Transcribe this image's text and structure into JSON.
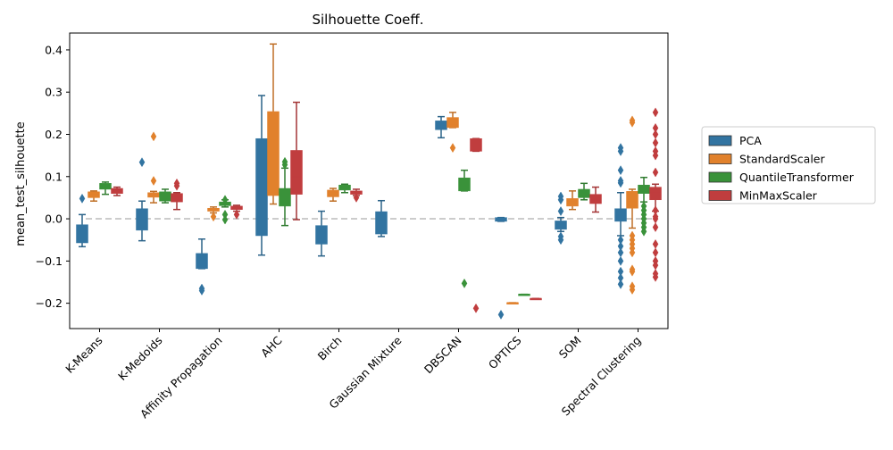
{
  "chart_data": {
    "type": "box",
    "title": "Silhouette Coeff.",
    "xlabel": "",
    "ylabel": "mean_test_silhouette",
    "ylim": [
      -0.26,
      0.44
    ],
    "yticks": [
      -0.2,
      -0.1,
      0.0,
      0.1,
      0.2,
      0.3,
      0.4
    ],
    "ytick_labels": [
      "−0.2",
      "−0.1",
      "0.0",
      "0.1",
      "0.2",
      "0.3",
      "0.4"
    ],
    "reference_line": {
      "y": 0.0,
      "style": "dashed",
      "color": "#bbbbbb"
    },
    "grid": false,
    "legend_position": "right-outside",
    "categories": [
      "K-Means",
      "K-Medoids",
      "Affinity Propagation",
      "AHC",
      "Birch",
      "Gaussian Mixture",
      "DBSCAN",
      "OPTICS",
      "SOM",
      "Spectral Clustering"
    ],
    "series": [
      {
        "name": "PCA",
        "color": "#3274a1",
        "boxes": [
          {
            "whislo": -0.066,
            "q1": -0.057,
            "med": -0.03,
            "q3": -0.014,
            "whishi": 0.01,
            "fliers": [
              0.048
            ]
          },
          {
            "whislo": -0.052,
            "q1": -0.027,
            "med": 0.0,
            "q3": 0.024,
            "whishi": 0.042,
            "fliers": [
              0.134
            ]
          },
          {
            "whislo": -0.118,
            "q1": -0.118,
            "med": -0.1,
            "q3": -0.082,
            "whishi": -0.048,
            "fliers": [
              -0.165,
              -0.17
            ]
          },
          {
            "whislo": -0.086,
            "q1": -0.04,
            "med": 0.1,
            "q3": 0.19,
            "whishi": 0.292,
            "fliers": []
          },
          {
            "whislo": -0.088,
            "q1": -0.06,
            "med": -0.03,
            "q3": -0.016,
            "whishi": 0.018,
            "fliers": []
          },
          {
            "whislo": -0.042,
            "q1": -0.036,
            "med": -0.005,
            "q3": 0.017,
            "whishi": 0.043,
            "fliers": []
          },
          {
            "whislo": 0.192,
            "q1": 0.211,
            "med": 0.222,
            "q3": 0.232,
            "whishi": 0.242,
            "fliers": []
          },
          {
            "whislo": -0.006,
            "q1": -0.006,
            "med": -0.003,
            "q3": 0.003,
            "whishi": 0.003,
            "fliers": [
              -0.227
            ]
          },
          {
            "whislo": -0.03,
            "q1": -0.025,
            "med": -0.015,
            "q3": -0.005,
            "whishi": 0.003,
            "fliers": [
              -0.05,
              -0.042,
              0.018,
              0.045,
              0.053
            ]
          },
          {
            "whislo": -0.04,
            "q1": -0.006,
            "med": 0.01,
            "q3": 0.024,
            "whishi": 0.062,
            "fliers": [
              -0.155,
              -0.14,
              -0.125,
              -0.1,
              -0.08,
              -0.065,
              -0.05,
              0.085,
              0.09,
              0.115,
              0.16,
              0.168
            ]
          }
        ]
      },
      {
        "name": "StandardScaler",
        "color": "#e1812c",
        "boxes": [
          {
            "whislo": 0.042,
            "q1": 0.05,
            "med": 0.056,
            "q3": 0.064,
            "whishi": 0.066,
            "fliers": []
          },
          {
            "whislo": 0.038,
            "q1": 0.051,
            "med": 0.056,
            "q3": 0.062,
            "whishi": 0.065,
            "fliers": [
              0.09,
              0.195
            ]
          },
          {
            "whislo": 0.014,
            "q1": 0.018,
            "med": 0.021,
            "q3": 0.025,
            "whishi": 0.028,
            "fliers": [
              0.005
            ]
          },
          {
            "whislo": 0.035,
            "q1": 0.055,
            "med": 0.06,
            "q3": 0.254,
            "whishi": 0.414,
            "fliers": []
          },
          {
            "whislo": 0.042,
            "q1": 0.052,
            "med": 0.06,
            "q3": 0.068,
            "whishi": 0.072,
            "fliers": []
          },
          {
            "whislo": 0.216,
            "q1": 0.216,
            "med": 0.225,
            "q3": 0.24,
            "whishi": 0.252,
            "fliers": [
              0.168
            ]
          },
          {
            "whislo": -0.199,
            "q1": -0.199,
            "med": -0.199,
            "q3": -0.199,
            "whishi": -0.199,
            "fliers": []
          },
          {
            "whislo": 0.022,
            "q1": 0.03,
            "med": 0.04,
            "q3": 0.048,
            "whishi": 0.066,
            "fliers": []
          },
          {
            "whislo": -0.022,
            "q1": 0.025,
            "med": 0.04,
            "q3": 0.065,
            "whishi": 0.07,
            "fliers": [
              -0.168,
              -0.16,
              -0.125,
              -0.12,
              -0.08,
              -0.07,
              -0.06,
              -0.05,
              -0.04,
              0.228,
              0.233
            ]
          }
        ]
      },
      {
        "name": "QuantileTransformer",
        "color": "#3a923a",
        "boxes": [
          {
            "whislo": 0.058,
            "q1": 0.07,
            "med": 0.076,
            "q3": 0.084,
            "whishi": 0.087,
            "fliers": []
          },
          {
            "whislo": 0.038,
            "q1": 0.042,
            "med": 0.05,
            "q3": 0.064,
            "whishi": 0.07,
            "fliers": []
          },
          {
            "whislo": 0.028,
            "q1": 0.031,
            "med": 0.035,
            "q3": 0.04,
            "whishi": 0.045,
            "fliers": [
              -0.002,
              0.01,
              0.045
            ]
          },
          {
            "whislo": -0.016,
            "q1": 0.03,
            "med": 0.05,
            "q3": 0.072,
            "whishi": 0.12,
            "fliers": [
              0.128,
              0.135
            ]
          },
          {
            "whislo": 0.062,
            "q1": 0.068,
            "med": 0.072,
            "q3": 0.08,
            "whishi": 0.082,
            "fliers": []
          },
          {
            "whislo": 0.066,
            "q1": 0.066,
            "med": 0.09,
            "q3": 0.097,
            "whishi": 0.115,
            "fliers": [
              -0.153
            ]
          },
          {
            "whislo": -0.179,
            "q1": -0.179,
            "med": -0.179,
            "q3": -0.179,
            "whishi": -0.179,
            "fliers": []
          },
          {
            "whislo": 0.045,
            "q1": 0.05,
            "med": 0.06,
            "q3": 0.07,
            "whishi": 0.084,
            "fliers": []
          },
          {
            "whislo": 0.04,
            "q1": 0.06,
            "med": 0.068,
            "q3": 0.08,
            "whishi": 0.098,
            "fliers": [
              -0.03,
              -0.02,
              -0.01,
              0.0,
              0.01,
              0.02,
              0.03
            ]
          }
        ]
      },
      {
        "name": "MinMaxScaler",
        "color": "#c03d3e",
        "boxes": [
          {
            "whislo": 0.055,
            "q1": 0.06,
            "med": 0.068,
            "q3": 0.072,
            "whishi": 0.075,
            "fliers": []
          },
          {
            "whislo": 0.022,
            "q1": 0.04,
            "med": 0.05,
            "q3": 0.06,
            "whishi": 0.062,
            "fliers": [
              0.078,
              0.084
            ]
          },
          {
            "whislo": 0.018,
            "q1": 0.022,
            "med": 0.025,
            "q3": 0.03,
            "whishi": 0.032,
            "fliers": [
              0.01
            ]
          },
          {
            "whislo": -0.002,
            "q1": 0.058,
            "med": 0.1,
            "q3": 0.162,
            "whishi": 0.276,
            "fliers": []
          },
          {
            "whislo": 0.055,
            "q1": 0.058,
            "med": 0.062,
            "q3": 0.066,
            "whishi": 0.07,
            "fliers": [
              0.05
            ]
          },
          {
            "whislo": 0.16,
            "q1": 0.16,
            "med": 0.17,
            "q3": 0.19,
            "whishi": 0.19,
            "fliers": [
              -0.212
            ]
          },
          {
            "whislo": -0.189,
            "q1": -0.189,
            "med": -0.189,
            "q3": -0.189,
            "whishi": -0.189,
            "fliers": []
          },
          {
            "whislo": 0.016,
            "q1": 0.036,
            "med": 0.045,
            "q3": 0.058,
            "whishi": 0.075,
            "fliers": []
          },
          {
            "whislo": 0.018,
            "q1": 0.045,
            "med": 0.06,
            "q3": 0.075,
            "whishi": 0.082,
            "fliers": [
              -0.138,
              -0.13,
              -0.11,
              -0.1,
              -0.08,
              -0.06,
              -0.02,
              0.0,
              0.005,
              0.02,
              0.11,
              0.15,
              0.16,
              0.18,
              0.2,
              0.215,
              0.252
            ]
          }
        ]
      }
    ],
    "box_slots": {
      "K-Means": [
        "PCA",
        "StandardScaler",
        "QuantileTransformer",
        "MinMaxScaler"
      ],
      "K-Medoids": [
        "PCA",
        "StandardScaler",
        "QuantileTransformer",
        "MinMaxScaler"
      ],
      "Affinity Propagation": [
        "PCA",
        "StandardScaler",
        "QuantileTransformer",
        "MinMaxScaler"
      ],
      "AHC": [
        "PCA",
        "StandardScaler",
        "QuantileTransformer",
        "MinMaxScaler"
      ],
      "Birch": [
        "PCA",
        "StandardScaler",
        "QuantileTransformer",
        "MinMaxScaler"
      ],
      "Gaussian Mixture": [
        "PCA"
      ],
      "DBSCAN": [
        "PCA",
        "StandardScaler",
        "QuantileTransformer",
        "MinMaxScaler"
      ],
      "OPTICS": [
        "PCA",
        "StandardScaler",
        "QuantileTransformer",
        "MinMaxScaler"
      ],
      "SOM": [
        "PCA",
        "StandardScaler",
        "QuantileTransformer",
        "MinMaxScaler"
      ],
      "Spectral Clustering": [
        "PCA",
        "StandardScaler",
        "QuantileTransformer",
        "MinMaxScaler"
      ]
    }
  }
}
